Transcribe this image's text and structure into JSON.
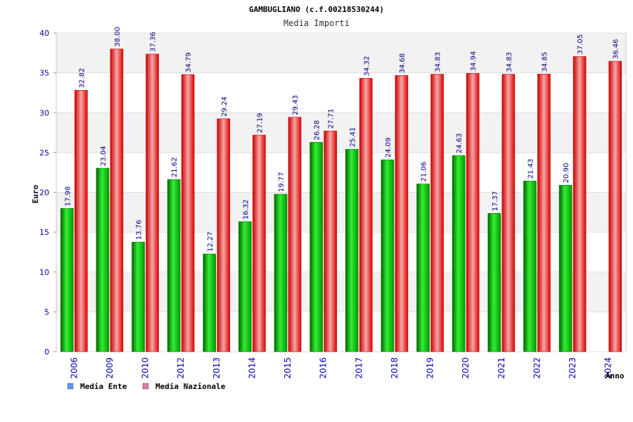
{
  "chart_data": {
    "type": "bar",
    "title": "GAMBUGLIANO (c.f.00218530244)",
    "subtitle": "Media Importi",
    "xlabel": "Anno",
    "ylabel": "Euro",
    "ylim": [
      0,
      40
    ],
    "yticks": [
      0,
      5,
      10,
      15,
      20,
      25,
      30,
      35,
      40
    ],
    "grid": true,
    "legend_position": "bottom-left",
    "categories": [
      "2006",
      "2009",
      "2010",
      "2012",
      "2013",
      "2014",
      "2015",
      "2016",
      "2017",
      "2018",
      "2019",
      "2020",
      "2021",
      "2022",
      "2023",
      "2024"
    ],
    "series": [
      {
        "name": "Media Ente",
        "legend_color": "#5599ee",
        "color": "#00cc00",
        "values": [
          17.98,
          23.04,
          13.76,
          21.62,
          12.27,
          16.32,
          19.77,
          26.28,
          25.41,
          24.09,
          21.06,
          24.63,
          17.37,
          21.43,
          20.9,
          null
        ],
        "labels": [
          "17.98",
          "23.04",
          "13.76",
          "21.62",
          "12.27",
          "16.32",
          "19.77",
          "26.28",
          "25.41",
          "24.09",
          "21.06",
          "24.63",
          "17.37",
          "21.43",
          "20.90",
          ""
        ]
      },
      {
        "name": "Media Nazionale",
        "legend_color": "#dd77aa",
        "color": "#ee1111",
        "values": [
          32.82,
          38.0,
          37.36,
          34.79,
          29.24,
          27.19,
          29.43,
          27.71,
          34.32,
          34.68,
          34.83,
          34.94,
          34.83,
          34.85,
          37.05,
          36.46
        ],
        "labels": [
          "32.82",
          "38.00",
          "37.36",
          "34.79",
          "29.24",
          "27.19",
          "29.43",
          "27.71",
          "34.32",
          "34.68",
          "34.83",
          "34.94",
          "34.83",
          "34.85",
          "37.05",
          "36.46"
        ]
      }
    ]
  }
}
